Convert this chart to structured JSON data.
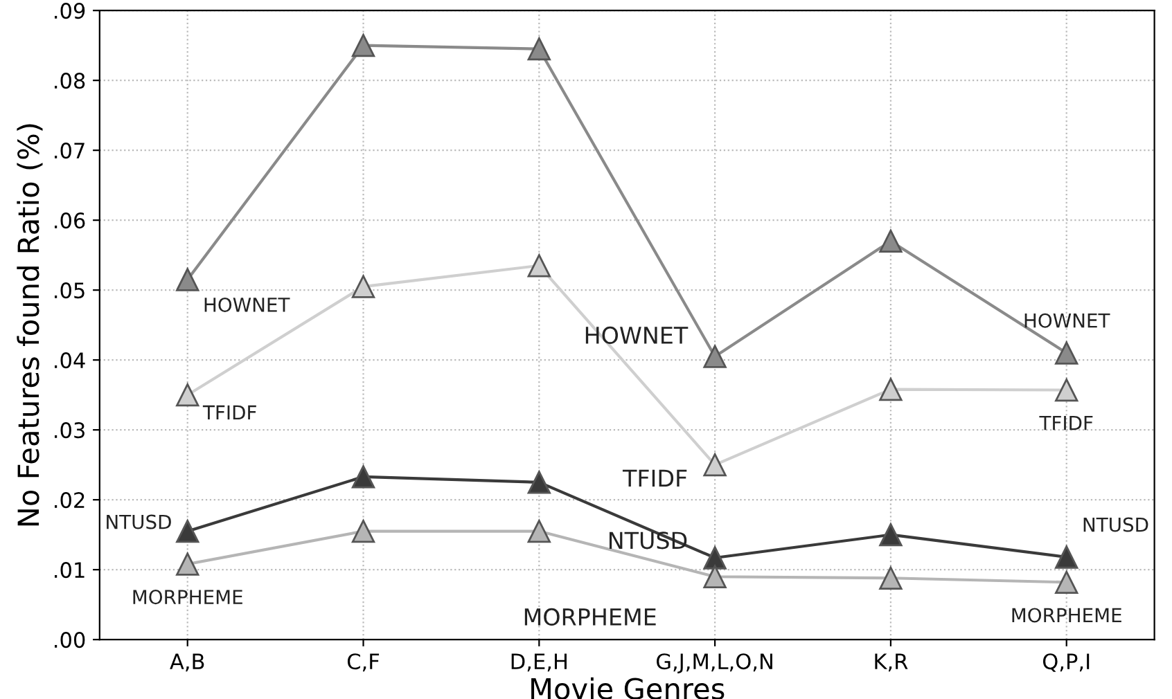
{
  "chart_data": {
    "type": "line",
    "xlabel": "Movie Genres",
    "ylabel": "No Features found Ratio (%)",
    "categories": [
      "A,B",
      "C,F",
      "D,E,H",
      "G,J,M,L,O,N",
      "K,R",
      "Q,P,I"
    ],
    "series": [
      {
        "color": "#8a8a8a",
        "values": [
          0.0515,
          0.085,
          0.0845,
          0.0405,
          0.057,
          0.041
        ]
      },
      {
        "color": "#cfcfcf",
        "values": [
          0.035,
          0.0505,
          0.0535,
          0.025,
          0.0358,
          0.0357
        ]
      },
      {
        "color": "#3a3a3a",
        "values": [
          0.0155,
          0.0233,
          0.0225,
          0.0117,
          0.015,
          0.0118
        ]
      },
      {
        "color": "#b5b5b5",
        "values": [
          0.0108,
          0.0155,
          0.0155,
          0.009,
          0.0088,
          0.0082
        ]
      }
    ],
    "annotations": [
      {
        "text": "HOWNET",
        "x": "A,B",
        "y": 0.0515
      },
      {
        "text": "HOWNET",
        "x": "G,J,M,L,O,N",
        "y": 0.0405
      },
      {
        "text": "HOWNET",
        "x": "Q,P,I",
        "y": 0.041
      },
      {
        "text": "TFIDF",
        "x": "A,B",
        "y": 0.035
      },
      {
        "text": "TFIDF",
        "x": "G,J,M,L,O,N",
        "y": 0.025
      },
      {
        "text": "TFIDF",
        "x": "Q,P,I",
        "y": 0.0357
      },
      {
        "text": "NTUSD",
        "x": "A,B",
        "y": 0.0155
      },
      {
        "text": "NTUSD",
        "x": "G,J,M,L,O,N",
        "y": 0.0117
      },
      {
        "text": "NTUSD",
        "x": "Q,P,I",
        "y": 0.0118
      },
      {
        "text": "MORPHEME",
        "x": "A,B",
        "y": 0.0108
      },
      {
        "text": "MORPHEME",
        "x": "G,J,M,L,O,N",
        "y": 0.009
      },
      {
        "text": "MORPHEME",
        "x": "Q,P,I",
        "y": 0.0082
      }
    ],
    "ylim": [
      0,
      0.09
    ],
    "yticks": [
      {
        "value": 0,
        "label": ".00"
      },
      {
        "value": 0.01,
        "label": ".01"
      },
      {
        "value": 0.02,
        "label": ".02"
      },
      {
        "value": 0.03,
        "label": ".03"
      },
      {
        "value": 0.04,
        "label": ".04"
      },
      {
        "value": 0.05,
        "label": ".05"
      },
      {
        "value": 0.06,
        "label": ".06"
      },
      {
        "value": 0.07,
        "label": ".07"
      },
      {
        "value": 0.08,
        "label": ".08"
      },
      {
        "value": 0.09,
        "label": ".09"
      }
    ],
    "grid": true,
    "marker": "triangle",
    "line_style": "solid"
  }
}
